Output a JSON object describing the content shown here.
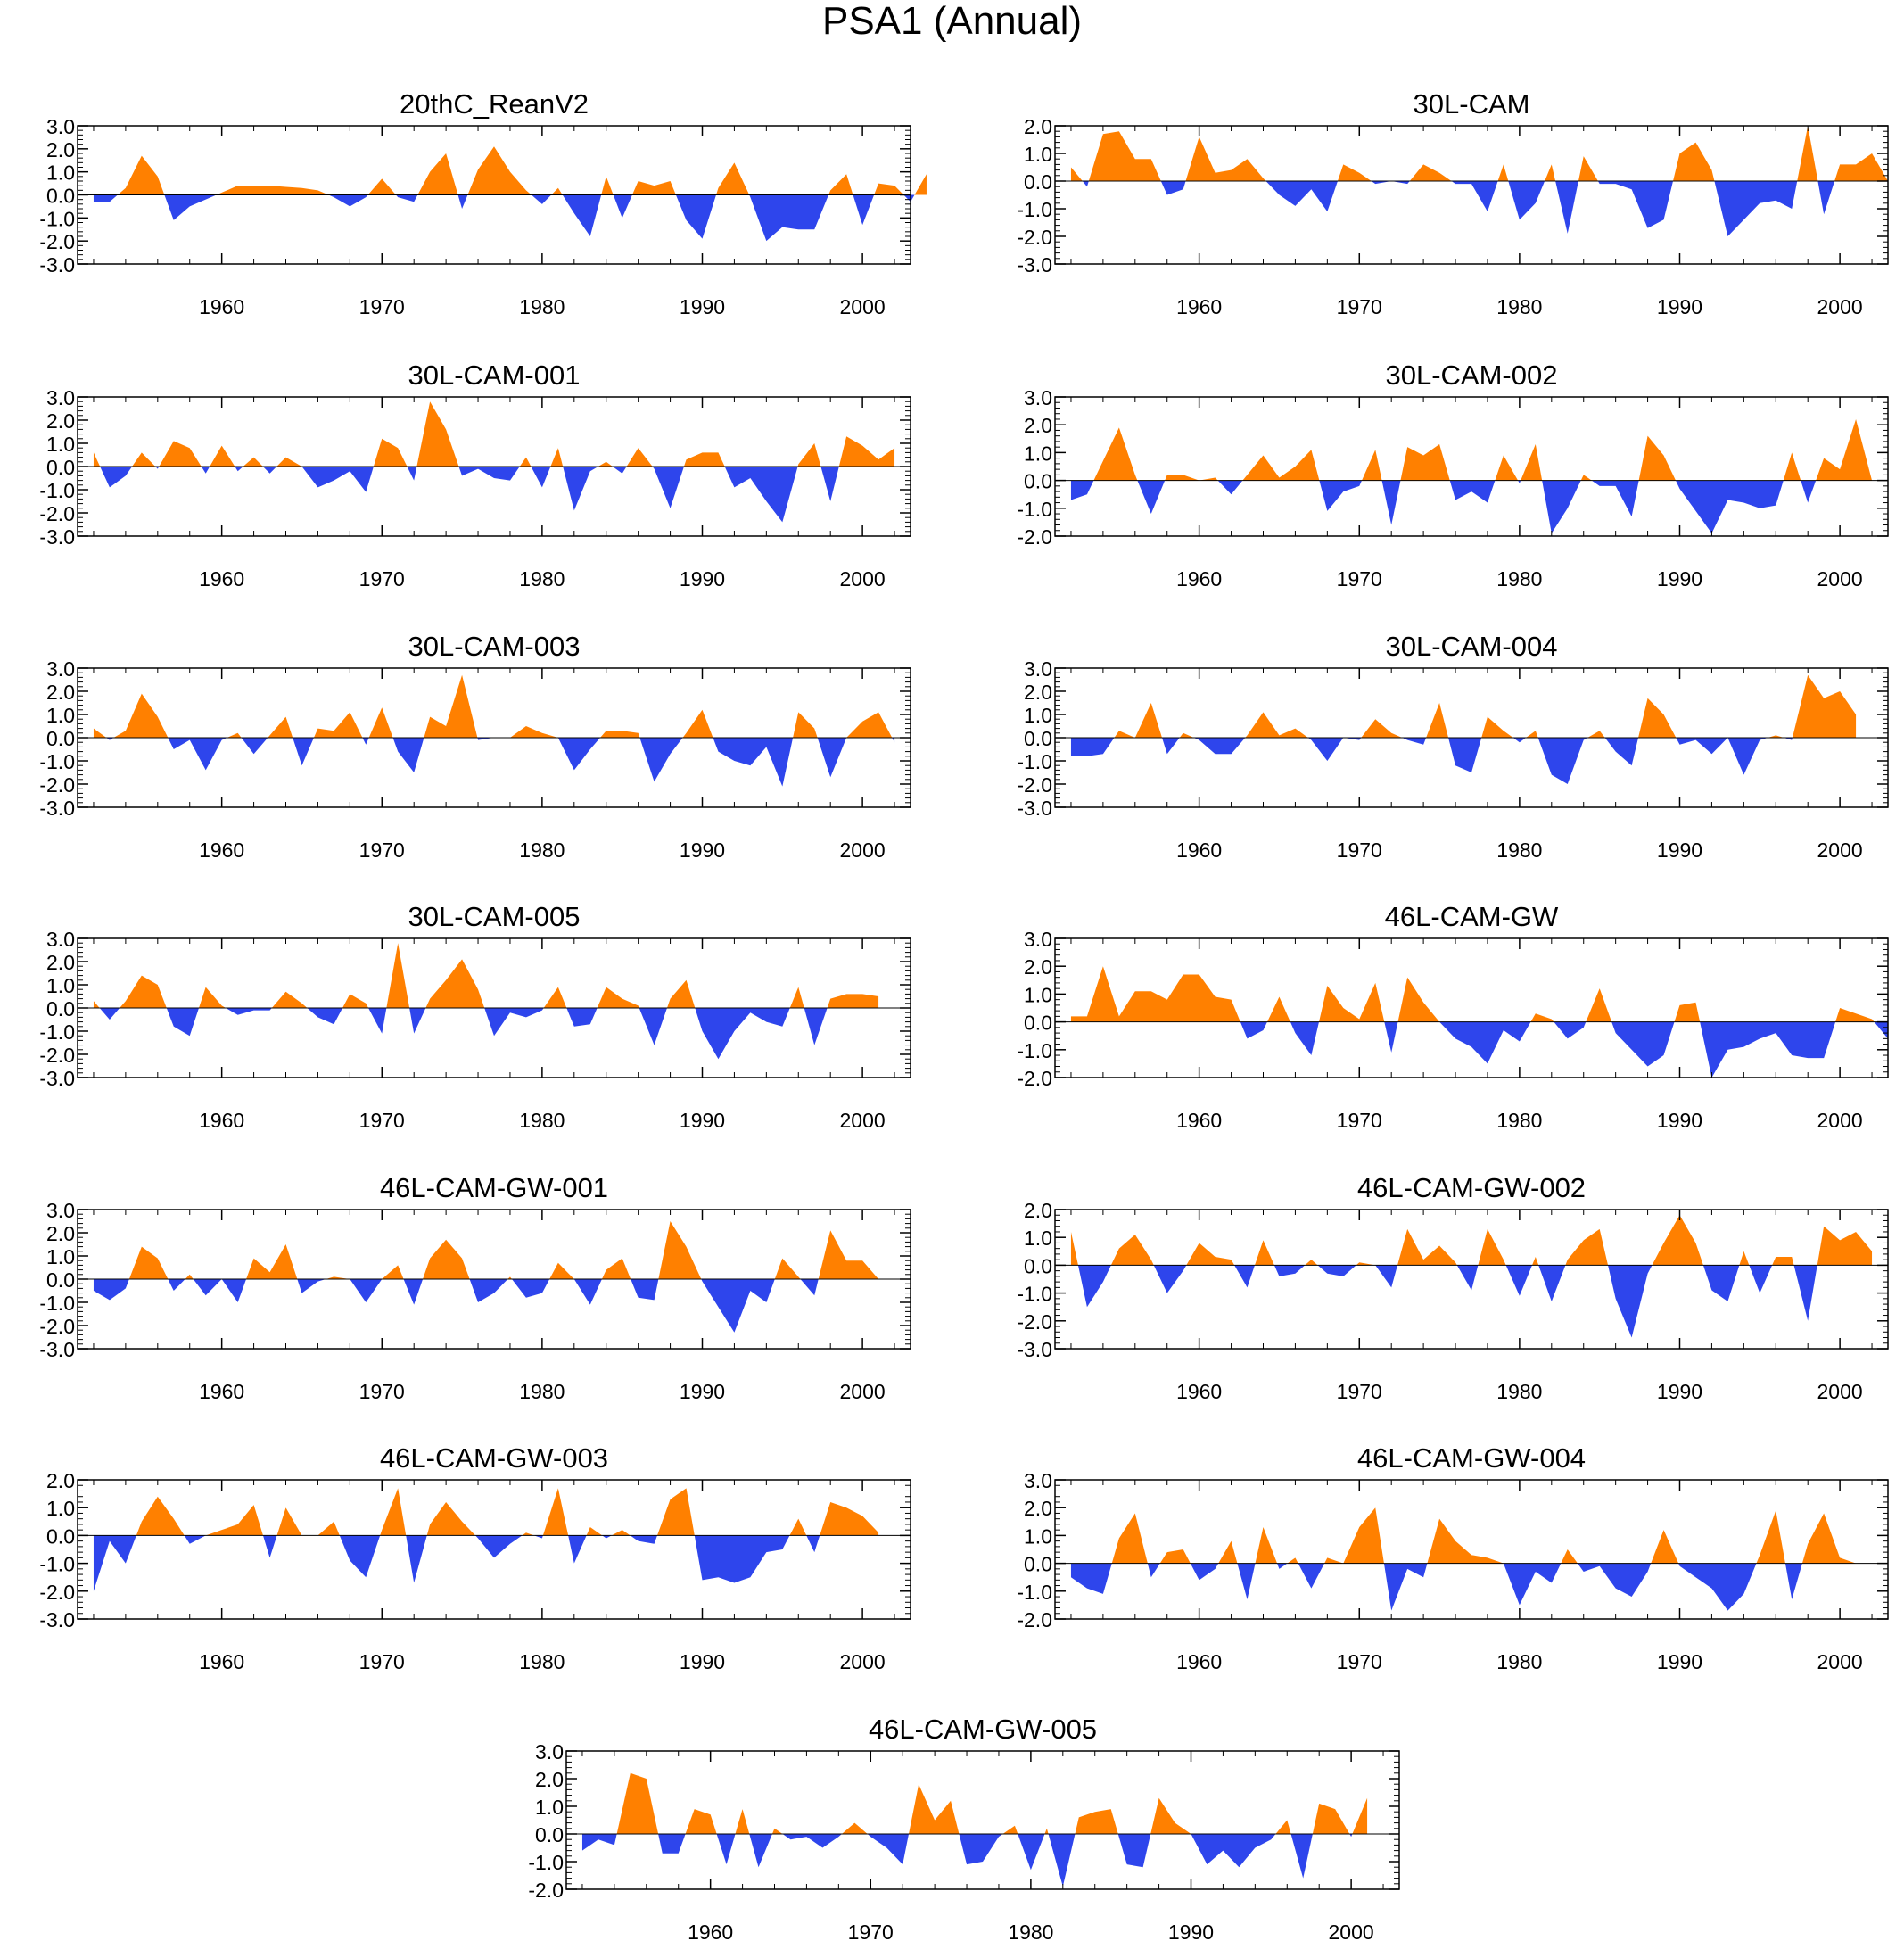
{
  "figure": {
    "title": "PSA1 (Annual)",
    "colors": {
      "positive": "#ff8000",
      "negative": "#2e45ec",
      "axis": "#000000"
    }
  },
  "chart_data": [
    {
      "type": "area",
      "title": "20thC_ReanV2",
      "xlim": [
        1951,
        2003
      ],
      "ylim": [
        -3,
        3
      ],
      "yticks": [
        "3.0",
        "2.0",
        "1.0",
        "0.0",
        "-1.0",
        "-2.0",
        "-3.0"
      ],
      "xticks": [
        "1960",
        "1970",
        "1980",
        "1990",
        "2000"
      ],
      "start_year": 1952,
      "values": [
        -0.3,
        -0.3,
        0.3,
        1.7,
        0.8,
        -1.1,
        -0.5,
        -0.2,
        0.1,
        0.4,
        0.4,
        0.4,
        0.35,
        0.3,
        0.2,
        -0.1,
        -0.5,
        -0.1,
        0.7,
        -0.1,
        -0.3,
        1.0,
        1.8,
        -0.6,
        1.1,
        2.1,
        1.0,
        0.2,
        -0.4,
        0.3,
        -0.8,
        -1.8,
        0.8,
        -1.0,
        0.6,
        0.4,
        0.6,
        -1.1,
        -1.9,
        0.3,
        1.4,
        -0.1,
        -2.0,
        -1.4,
        -1.5,
        -1.5,
        0.2,
        0.9,
        -1.3,
        0.5,
        0.4,
        -0.3,
        0.9
      ]
    },
    {
      "type": "area",
      "title": "30L-CAM",
      "xlim": [
        1951,
        2003
      ],
      "ylim": [
        -3,
        2
      ],
      "yticks": [
        "2.0",
        "1.0",
        "0.0",
        "-1.0",
        "-2.0",
        "-3.0"
      ],
      "xticks": [
        "1960",
        "1970",
        "1980",
        "1990",
        "2000"
      ],
      "start_year": 1952,
      "values": [
        0.5,
        -0.2,
        1.7,
        1.8,
        0.8,
        0.8,
        -0.5,
        -0.3,
        1.6,
        0.3,
        0.4,
        0.8,
        0.1,
        -0.5,
        -0.9,
        -0.3,
        -1.1,
        0.6,
        0.3,
        -0.1,
        0.0,
        -0.1,
        0.6,
        0.3,
        -0.1,
        -0.1,
        -1.1,
        0.6,
        -1.4,
        -0.8,
        0.6,
        -1.9,
        0.9,
        -0.1,
        -0.1,
        -0.3,
        -1.7,
        -1.4,
        1.0,
        1.4,
        0.4,
        -2.0,
        -1.4,
        -0.8,
        -0.7,
        -1.0,
        2.0,
        -1.2,
        0.6,
        0.6,
        1.0,
        0.0
      ]
    },
    {
      "type": "area",
      "title": "30L-CAM-001",
      "xlim": [
        1951,
        2003
      ],
      "ylim": [
        -3,
        3
      ],
      "yticks": [
        "3.0",
        "2.0",
        "1.0",
        "0.0",
        "-1.0",
        "-2.0",
        "-3.0"
      ],
      "xticks": [
        "1960",
        "1970",
        "1980",
        "1990",
        "2000"
      ],
      "start_year": 1952,
      "values": [
        0.6,
        -0.9,
        -0.4,
        0.6,
        -0.1,
        1.1,
        0.8,
        -0.3,
        0.9,
        -0.2,
        0.4,
        -0.3,
        0.4,
        0.0,
        -0.9,
        -0.6,
        -0.2,
        -1.1,
        1.2,
        0.8,
        -0.6,
        2.8,
        1.6,
        -0.4,
        -0.1,
        -0.5,
        -0.6,
        0.4,
        -0.9,
        0.8,
        -1.9,
        -0.2,
        0.2,
        -0.3,
        0.8,
        -0.1,
        -1.8,
        0.3,
        0.6,
        0.6,
        -0.9,
        -0.5,
        -1.5,
        -2.4,
        0.1,
        1.0,
        -1.5,
        1.3,
        0.9,
        0.3,
        0.8
      ]
    },
    {
      "type": "area",
      "title": "30L-CAM-002",
      "xlim": [
        1951,
        2003
      ],
      "ylim": [
        -2,
        3
      ],
      "yticks": [
        "3.0",
        "2.0",
        "1.0",
        "0.0",
        "-1.0",
        "-2.0"
      ],
      "xticks": [
        "1960",
        "1970",
        "1980",
        "1990",
        "2000"
      ],
      "start_year": 1952,
      "values": [
        -0.7,
        -0.5,
        0.7,
        1.9,
        0.2,
        -1.2,
        0.2,
        0.2,
        0.0,
        0.1,
        -0.5,
        0.2,
        0.9,
        0.1,
        0.5,
        1.1,
        -1.1,
        -0.4,
        -0.2,
        1.1,
        -1.6,
        1.2,
        0.9,
        1.3,
        -0.7,
        -0.4,
        -0.8,
        0.9,
        -0.1,
        1.3,
        -1.9,
        -1.0,
        0.2,
        -0.2,
        -0.2,
        -1.3,
        1.6,
        0.9,
        -0.3,
        -1.1,
        -1.9,
        -0.7,
        -0.8,
        -1.0,
        -0.9,
        1.0,
        -0.8,
        0.8,
        0.4,
        2.2,
        0.0
      ]
    },
    {
      "type": "area",
      "title": "30L-CAM-003",
      "xlim": [
        1951,
        2003
      ],
      "ylim": [
        -3,
        3
      ],
      "yticks": [
        "3.0",
        "2.0",
        "1.0",
        "0.0",
        "-1.0",
        "-2.0",
        "-3.0"
      ],
      "xticks": [
        "1960",
        "1970",
        "1980",
        "1990",
        "2000"
      ],
      "start_year": 1952,
      "values": [
        0.4,
        -0.1,
        0.3,
        1.9,
        0.9,
        -0.5,
        -0.1,
        -1.4,
        -0.1,
        0.2,
        -0.7,
        0.1,
        0.9,
        -1.2,
        0.4,
        0.3,
        1.1,
        -0.3,
        1.3,
        -0.6,
        -1.5,
        0.9,
        0.5,
        2.7,
        -0.1,
        0.0,
        0.0,
        0.5,
        0.2,
        0.0,
        -1.4,
        -0.5,
        0.3,
        0.3,
        0.2,
        -1.9,
        -0.7,
        0.2,
        1.2,
        -0.6,
        -1.0,
        -1.2,
        -0.4,
        -2.1,
        1.1,
        0.4,
        -1.7,
        0.0,
        0.7,
        1.1,
        -0.2
      ]
    },
    {
      "type": "area",
      "title": "30L-CAM-004",
      "xlim": [
        1951,
        2003
      ],
      "ylim": [
        -3,
        3
      ],
      "yticks": [
        "3.0",
        "2.0",
        "1.0",
        "0.0",
        "-1.0",
        "-2.0",
        "-3.0"
      ],
      "xticks": [
        "1960",
        "1970",
        "1980",
        "1990",
        "2000"
      ],
      "start_year": 1952,
      "values": [
        -0.8,
        -0.8,
        -0.7,
        0.3,
        0.0,
        1.5,
        -0.7,
        0.2,
        -0.1,
        -0.7,
        -0.7,
        0.1,
        1.1,
        0.1,
        0.4,
        -0.1,
        -1.0,
        0.0,
        -0.1,
        0.8,
        0.2,
        -0.1,
        -0.3,
        1.5,
        -1.2,
        -1.5,
        0.9,
        0.3,
        -0.2,
        0.3,
        -1.6,
        -2.0,
        -0.1,
        0.3,
        -0.6,
        -1.2,
        1.7,
        1.0,
        -0.3,
        -0.1,
        -0.7,
        0.0,
        -1.6,
        -0.1,
        0.1,
        -0.1,
        2.7,
        1.7,
        2.0,
        1.0
      ]
    },
    {
      "type": "area",
      "title": "30L-CAM-005",
      "xlim": [
        1951,
        2003
      ],
      "ylim": [
        -3,
        3
      ],
      "yticks": [
        "3.0",
        "2.0",
        "1.0",
        "0.0",
        "-1.0",
        "-2.0",
        "-3.0"
      ],
      "xticks": [
        "1960",
        "1970",
        "1980",
        "1990",
        "2000"
      ],
      "start_year": 1952,
      "values": [
        0.3,
        -0.5,
        0.3,
        1.4,
        1.0,
        -0.8,
        -1.2,
        0.9,
        0.1,
        -0.3,
        -0.1,
        -0.1,
        0.7,
        0.2,
        -0.4,
        -0.7,
        0.6,
        0.2,
        -1.1,
        2.8,
        -1.1,
        0.4,
        1.2,
        2.1,
        0.8,
        -1.2,
        -0.2,
        -0.4,
        -0.1,
        0.9,
        -0.8,
        -0.7,
        0.9,
        0.4,
        0.1,
        -1.6,
        0.4,
        1.2,
        -1.0,
        -2.2,
        -1.0,
        -0.2,
        -0.6,
        -0.8,
        0.9,
        -1.6,
        0.4,
        0.6,
        0.6,
        0.5
      ]
    },
    {
      "type": "area",
      "title": "46L-CAM-GW",
      "xlim": [
        1951,
        2003
      ],
      "ylim": [
        -2,
        3
      ],
      "yticks": [
        "3.0",
        "2.0",
        "1.0",
        "0.0",
        "-1.0",
        "-2.0"
      ],
      "xticks": [
        "1960",
        "1970",
        "1980",
        "1990",
        "2000"
      ],
      "start_year": 1952,
      "values": [
        0.2,
        0.2,
        2.0,
        0.2,
        1.1,
        1.1,
        0.8,
        1.7,
        1.7,
        0.9,
        0.8,
        -0.6,
        -0.3,
        0.9,
        -0.4,
        -1.2,
        1.3,
        0.5,
        0.1,
        1.4,
        -1.1,
        1.6,
        0.7,
        0.0,
        -0.6,
        -0.9,
        -1.5,
        -0.3,
        -0.7,
        0.3,
        0.1,
        -0.6,
        -0.2,
        1.2,
        -0.4,
        -1.0,
        -1.6,
        -1.2,
        0.6,
        0.7,
        -2.0,
        -1.0,
        -0.9,
        -0.6,
        -0.4,
        -1.2,
        -1.3,
        -1.3,
        0.5,
        0.3,
        0.1,
        -0.6
      ]
    },
    {
      "type": "area",
      "title": "46L-CAM-GW-001",
      "xlim": [
        1951,
        2003
      ],
      "ylim": [
        -3,
        3
      ],
      "yticks": [
        "3.0",
        "2.0",
        "1.0",
        "0.0",
        "-1.0",
        "-2.0",
        "-3.0"
      ],
      "xticks": [
        "1960",
        "1970",
        "1980",
        "1990",
        "2000"
      ],
      "start_year": 1952,
      "values": [
        -0.5,
        -0.9,
        -0.4,
        1.4,
        0.9,
        -0.5,
        0.2,
        -0.7,
        0.0,
        -1.0,
        0.9,
        0.3,
        1.5,
        -0.6,
        -0.1,
        0.1,
        0.0,
        -1.0,
        0.0,
        0.6,
        -1.1,
        0.9,
        1.7,
        0.9,
        -1.0,
        -0.6,
        0.1,
        -0.8,
        -0.6,
        0.7,
        0.0,
        -1.1,
        0.4,
        0.9,
        -0.8,
        -0.9,
        2.5,
        1.4,
        -0.1,
        -1.2,
        -2.3,
        -0.5,
        -1.0,
        0.9,
        0.1,
        -0.7,
        2.1,
        0.8,
        0.8,
        0.0
      ]
    },
    {
      "type": "area",
      "title": "46L-CAM-GW-002",
      "xlim": [
        1951,
        2003
      ],
      "ylim": [
        -3,
        2
      ],
      "yticks": [
        "2.0",
        "1.0",
        "0.0",
        "-1.0",
        "-2.0",
        "-3.0"
      ],
      "xticks": [
        "1960",
        "1970",
        "1980",
        "1990",
        "2000"
      ],
      "start_year": 1952,
      "values": [
        1.2,
        -1.5,
        -0.6,
        0.6,
        1.1,
        0.2,
        -1.0,
        -0.2,
        0.8,
        0.3,
        0.2,
        -0.8,
        0.9,
        -0.4,
        -0.3,
        0.2,
        -0.3,
        -0.4,
        0.1,
        0.0,
        -0.8,
        1.3,
        0.2,
        0.7,
        0.1,
        -0.9,
        1.3,
        0.2,
        -1.1,
        0.3,
        -1.3,
        0.2,
        0.9,
        1.3,
        -1.2,
        -2.6,
        -0.3,
        0.8,
        1.8,
        0.8,
        -0.9,
        -1.3,
        0.5,
        -1.0,
        0.3,
        0.3,
        -2.0,
        1.4,
        0.9,
        1.2,
        0.5
      ]
    },
    {
      "type": "area",
      "title": "46L-CAM-GW-003",
      "xlim": [
        1951,
        2003
      ],
      "ylim": [
        -3,
        2
      ],
      "yticks": [
        "2.0",
        "1.0",
        "0.0",
        "-1.0",
        "-2.0",
        "-3.0"
      ],
      "xticks": [
        "1960",
        "1970",
        "1980",
        "1990",
        "2000"
      ],
      "start_year": 1952,
      "values": [
        -2.0,
        -0.2,
        -1.0,
        0.5,
        1.4,
        0.6,
        -0.3,
        0.0,
        0.2,
        0.4,
        1.1,
        -0.8,
        1.0,
        0.0,
        0.0,
        0.5,
        -0.9,
        -1.5,
        0.2,
        1.7,
        -1.7,
        0.4,
        1.2,
        0.5,
        -0.1,
        -0.8,
        -0.3,
        0.1,
        -0.1,
        1.7,
        -1.0,
        0.3,
        -0.1,
        0.2,
        -0.2,
        -0.3,
        1.3,
        1.7,
        -1.6,
        -1.5,
        -1.7,
        -1.5,
        -0.6,
        -0.5,
        0.6,
        -0.6,
        1.2,
        1.0,
        0.7,
        0.1
      ]
    },
    {
      "type": "area",
      "title": "46L-CAM-GW-004",
      "xlim": [
        1951,
        2003
      ],
      "ylim": [
        -2,
        3
      ],
      "yticks": [
        "3.0",
        "2.0",
        "1.0",
        "0.0",
        "-1.0",
        "-2.0"
      ],
      "xticks": [
        "1960",
        "1970",
        "1980",
        "1990",
        "2000"
      ],
      "start_year": 1952,
      "values": [
        -0.5,
        -0.9,
        -1.1,
        0.9,
        1.8,
        -0.5,
        0.4,
        0.5,
        -0.6,
        -0.2,
        0.8,
        -1.3,
        1.3,
        -0.2,
        0.2,
        -0.9,
        0.2,
        0.0,
        1.3,
        2.0,
        -1.7,
        -0.2,
        -0.5,
        1.6,
        0.8,
        0.3,
        0.2,
        0.0,
        -1.5,
        -0.3,
        -0.7,
        0.5,
        -0.3,
        -0.1,
        -0.9,
        -1.2,
        -0.3,
        1.2,
        -0.1,
        -0.5,
        -0.9,
        -1.7,
        -1.1,
        0.3,
        1.9,
        -1.3,
        0.7,
        1.8,
        0.2,
        0.0
      ]
    },
    {
      "type": "area",
      "title": "46L-CAM-GW-005",
      "xlim": [
        1951,
        2003
      ],
      "ylim": [
        -2,
        3
      ],
      "yticks": [
        "3.0",
        "2.0",
        "1.0",
        "0.0",
        "-1.0",
        "-2.0"
      ],
      "xticks": [
        "1960",
        "1970",
        "1980",
        "1990",
        "2000"
      ],
      "start_year": 1952,
      "values": [
        -0.6,
        -0.2,
        -0.4,
        2.2,
        2.0,
        -0.7,
        -0.7,
        0.9,
        0.7,
        -1.1,
        0.9,
        -1.2,
        0.2,
        -0.2,
        -0.1,
        -0.5,
        -0.1,
        0.4,
        -0.1,
        -0.5,
        -1.1,
        1.8,
        0.5,
        1.2,
        -1.1,
        -1.0,
        -0.1,
        0.3,
        -1.3,
        0.2,
        -1.9,
        0.6,
        0.8,
        0.9,
        -1.1,
        -1.2,
        1.3,
        0.4,
        0.0,
        -1.1,
        -0.6,
        -1.2,
        -0.5,
        -0.2,
        0.5,
        -1.6,
        1.1,
        0.9,
        -0.1,
        1.3
      ]
    }
  ]
}
